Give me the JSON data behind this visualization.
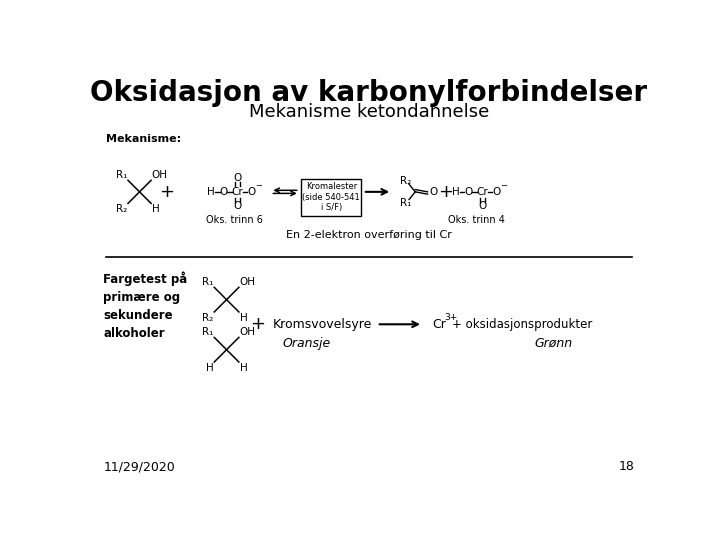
{
  "title": "Oksidasjon av karbonylforbindelser",
  "subtitle": "Mekanisme ketondannelse",
  "title_fontsize": 20,
  "subtitle_fontsize": 13,
  "background_color": "#ffffff",
  "text_color": "#000000",
  "date_text": "11/29/2020",
  "page_number": "18",
  "mekanisme_label": "Mekanisme:",
  "oks_trinn6": "Oks. trinn 6",
  "oks_trinn4": "Oks. trinn 4",
  "en_2_elektron": "En 2-elektron overføring til Cr",
  "fargetest_label": "Fargetest på\nprimære og\nsekundere\nalkoholer",
  "kromalester_text": "Kromalester\n(side 540-541\ni S/F)",
  "kromsvovelsyre": "Kromsvovelsyre",
  "oransje": "Oransje",
  "gronn": "Grønn",
  "oksidasjonsprodukter": "+ oksidasjonsprodukter"
}
